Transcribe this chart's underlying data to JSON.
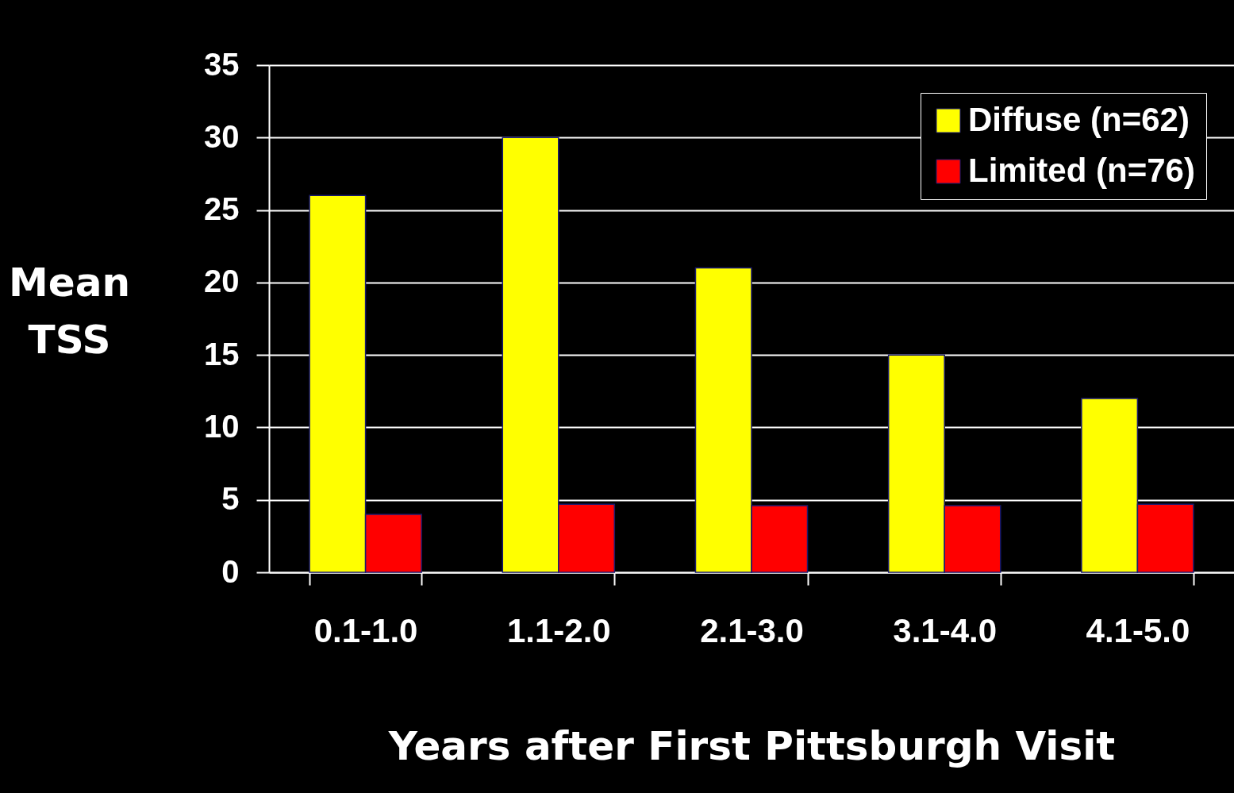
{
  "chart_data": {
    "type": "bar",
    "xlabel": "Years after First Pittsburgh Visit",
    "ylabel": "Mean TSS",
    "categories": [
      "0.1-1.0",
      "1.1-2.0",
      "2.1-3.0",
      "3.1-4.0",
      "4.1-5.0"
    ],
    "series": [
      {
        "name": "Diffuse (n=62)",
        "color": "#ffff00",
        "values": [
          26,
          30,
          21,
          15,
          12
        ]
      },
      {
        "name": "Limited (n=76)",
        "color": "#ff0000",
        "values": [
          4.0,
          4.7,
          4.6,
          4.6,
          4.7
        ]
      }
    ],
    "ylim": [
      0,
      35
    ],
    "yticks": [
      0,
      5,
      10,
      15,
      20,
      25,
      30,
      35
    ],
    "grid": "y",
    "legend": "top right"
  }
}
